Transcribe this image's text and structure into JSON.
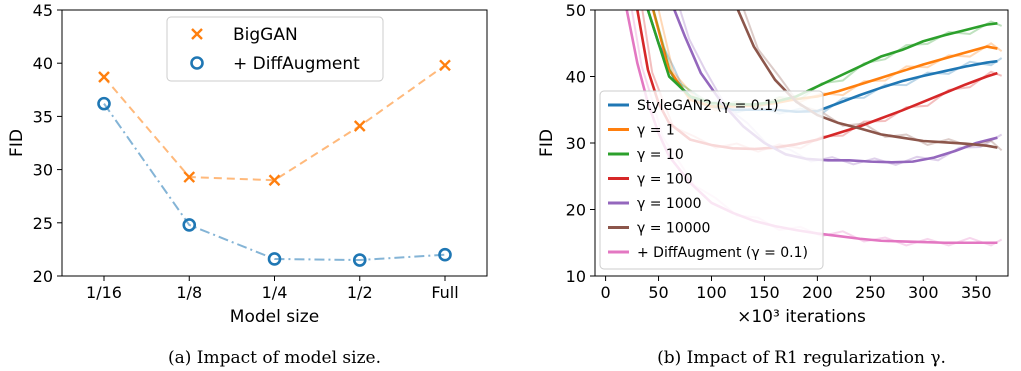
{
  "chart_data": [
    {
      "type": "line",
      "subcaption": "(a) Impact of model size.",
      "xlabel": "Model size",
      "ylabel": "FID",
      "categories": [
        "1/16",
        "1/8",
        "1/4",
        "1/2",
        "Full"
      ],
      "ylim": [
        20,
        45
      ],
      "yticks": [
        20,
        25,
        30,
        35,
        40,
        45
      ],
      "legend_position": "top-center",
      "series": [
        {
          "name": "BigGAN",
          "color": "#ff7f0e",
          "marker": "x",
          "linestyle": "dashed",
          "values": [
            38.7,
            29.3,
            29.0,
            34.1,
            39.8
          ]
        },
        {
          "name": "+ DiffAugment",
          "color": "#1f77b4",
          "marker": "circle",
          "linestyle": "dash-dot",
          "values": [
            36.2,
            24.8,
            21.6,
            21.5,
            22.0
          ]
        }
      ]
    },
    {
      "type": "line",
      "subcaption": "(b) Impact of R1 regularization γ.",
      "xlabel": "×10³ iterations",
      "ylabel": "FID",
      "xlim": [
        -10,
        380
      ],
      "ylim": [
        10,
        50
      ],
      "xticks": [
        0,
        50,
        100,
        150,
        200,
        250,
        300,
        350
      ],
      "yticks": [
        10,
        20,
        30,
        40,
        50
      ],
      "legend_position": "lower-left",
      "series": [
        {
          "name": "StyleGAN2 (γ = 0.1)",
          "color": "#1f77b4",
          "x": [
            40,
            50,
            60,
            70,
            80,
            90,
            100,
            120,
            140,
            160,
            180,
            200,
            220,
            240,
            260,
            280,
            300,
            320,
            340,
            360,
            370
          ],
          "y": [
            50,
            45,
            41,
            38.5,
            37,
            36,
            35.5,
            35,
            35,
            35,
            34.7,
            34.8,
            36,
            37.2,
            38.3,
            39.3,
            40.1,
            40.8,
            41.5,
            42.1,
            42.3
          ]
        },
        {
          "name": "γ = 1",
          "color": "#ff7f0e",
          "x": [
            45,
            60,
            80,
            100,
            120,
            140,
            160,
            180,
            200,
            220,
            240,
            260,
            280,
            300,
            320,
            340,
            360,
            370
          ],
          "y": [
            50,
            41,
            36.5,
            35.5,
            35.5,
            35.6,
            36,
            36.6,
            37,
            37.8,
            38.8,
            39.8,
            40.8,
            41.8,
            42.7,
            43.6,
            44.5,
            44.2
          ]
        },
        {
          "name": "γ = 10",
          "color": "#2ca02c",
          "x": [
            40,
            60,
            80,
            100,
            120,
            140,
            160,
            180,
            200,
            220,
            240,
            260,
            280,
            300,
            320,
            340,
            360,
            370
          ],
          "y": [
            50,
            40,
            37,
            36,
            35.8,
            35.8,
            36.2,
            37,
            38.5,
            40,
            41.5,
            43,
            44,
            45.3,
            46.2,
            47,
            47.8,
            48
          ]
        },
        {
          "name": "γ = 100",
          "color": "#d62728",
          "x": [
            30,
            40,
            50,
            60,
            80,
            100,
            120,
            140,
            160,
            180,
            200,
            220,
            240,
            260,
            280,
            300,
            320,
            340,
            360,
            370
          ],
          "y": [
            50,
            41,
            36,
            33,
            30.5,
            29.7,
            29.2,
            29.1,
            29.3,
            29.8,
            30.5,
            31.5,
            32.5,
            33.7,
            34.9,
            36.2,
            37.5,
            38.8,
            40,
            40.5
          ]
        },
        {
          "name": "γ = 1000",
          "color": "#9467bd",
          "x": [
            65,
            75,
            90,
            110,
            130,
            150,
            170,
            190,
            210,
            230,
            250,
            270,
            290,
            310,
            330,
            350,
            370
          ],
          "y": [
            50,
            46,
            40.5,
            36,
            32.5,
            30,
            28.3,
            27.6,
            27.4,
            27.4,
            27.2,
            27.1,
            27.2,
            27.8,
            28.8,
            30,
            30.8
          ]
        },
        {
          "name": "γ = 10000",
          "color": "#8c564b",
          "x": [
            125,
            140,
            160,
            180,
            200,
            220,
            240,
            260,
            280,
            300,
            320,
            340,
            360,
            370
          ],
          "y": [
            50,
            44.5,
            39.5,
            36.2,
            34.2,
            33,
            32.2,
            31.3,
            30.8,
            30.3,
            30.1,
            29.9,
            29.6,
            29.3
          ]
        },
        {
          "name": "+ DiffAugment (γ = 0.1)",
          "color": "#e377c2",
          "x": [
            20,
            30,
            40,
            50,
            60,
            80,
            100,
            120,
            140,
            160,
            180,
            200,
            220,
            240,
            260,
            280,
            300,
            320,
            340,
            360,
            370
          ],
          "y": [
            50,
            42,
            36,
            31.5,
            28,
            24,
            21,
            19.5,
            18.3,
            17.5,
            16.9,
            16.4,
            16,
            15.6,
            15.3,
            15.2,
            15.1,
            15,
            15,
            15,
            15
          ]
        }
      ]
    }
  ]
}
